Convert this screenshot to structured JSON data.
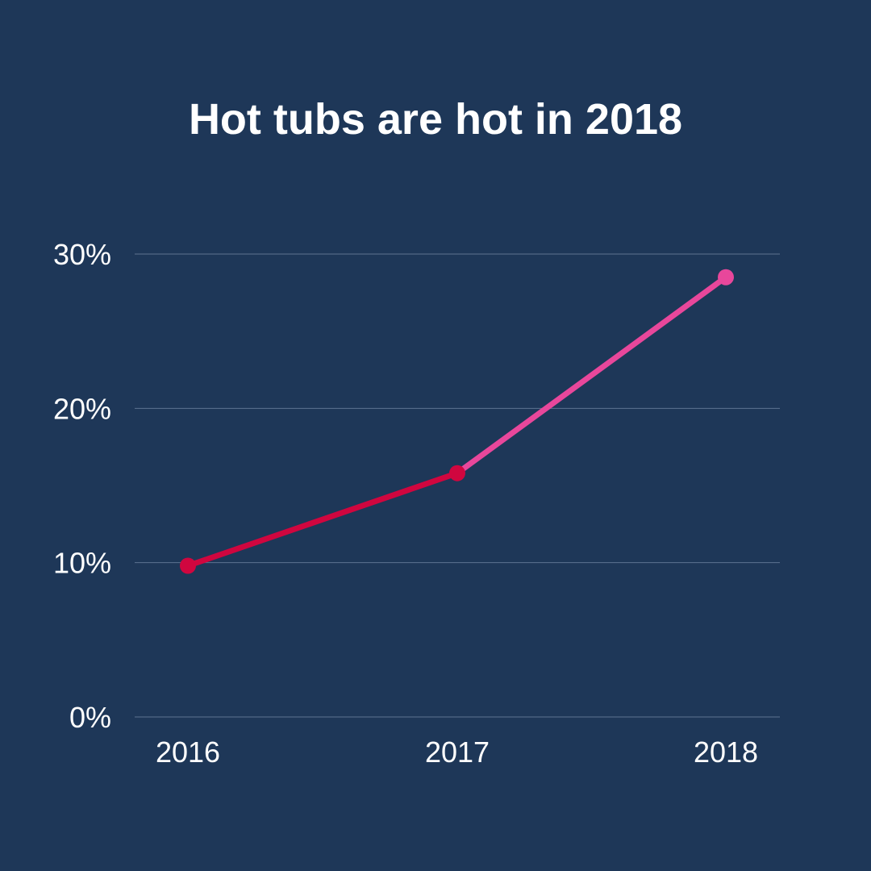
{
  "chart_data": {
    "type": "line",
    "title": "Hot tubs are hot in 2018",
    "xlabel": "",
    "ylabel": "",
    "categories": [
      "2016",
      "2017",
      "2018"
    ],
    "series": [
      {
        "values": [
          9.8,
          15.8,
          28.5
        ],
        "segment_colors": [
          "#d0063f",
          "#e8479b"
        ],
        "point_colors": [
          "#d0063f",
          "#d0063f",
          "#e8479b"
        ]
      }
    ],
    "yticks": [
      "0%",
      "10%",
      "20%",
      "30%"
    ],
    "ylim": [
      0,
      30
    ],
    "grid": true,
    "legend": "none"
  },
  "colors": {
    "background": "#1e3758",
    "text": "#ffffff",
    "grid": "#5d7390"
  }
}
